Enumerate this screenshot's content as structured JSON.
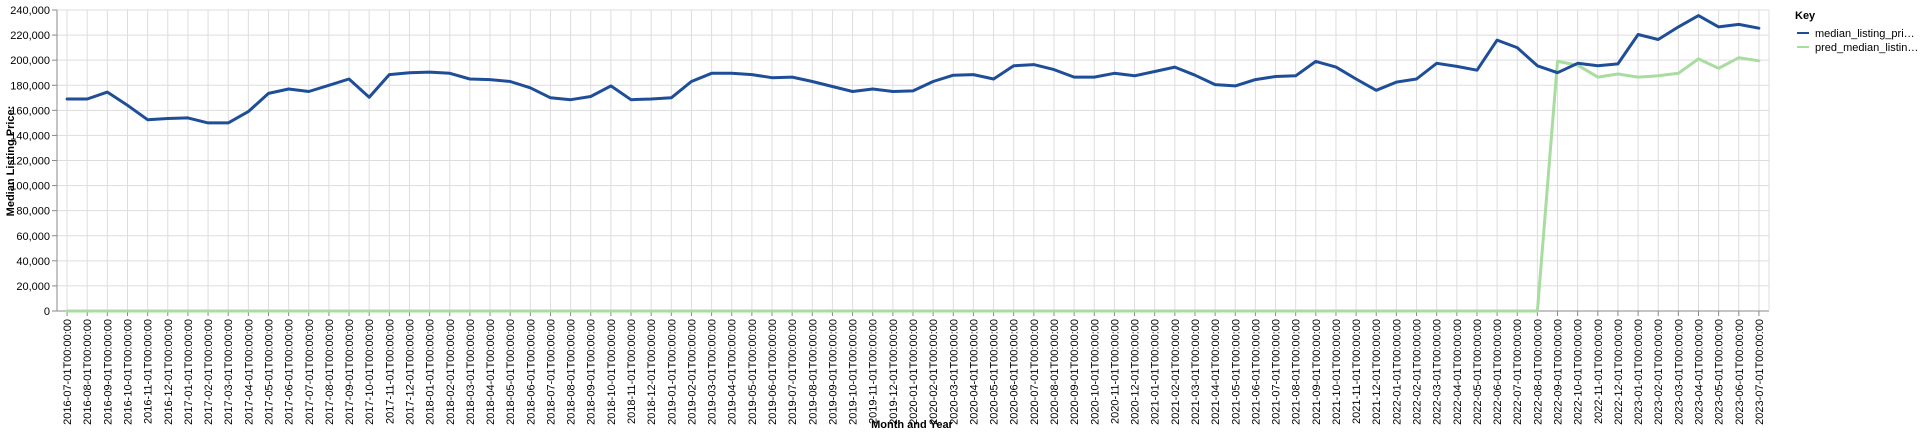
{
  "chart_data": {
    "type": "line",
    "title": "",
    "xlabel": "Month and Year",
    "ylabel": "Median Listing Price:",
    "ylim": [
      0,
      240000
    ],
    "y_ticks": [
      "0",
      "20,000",
      "40,000",
      "60,000",
      "80,000",
      "100,000",
      "120,000",
      "140,000",
      "160,000",
      "180,000",
      "200,000",
      "220,000",
      "240,000"
    ],
    "grid": true,
    "legend_position": "right",
    "legend_title": "Key",
    "legend_labels": [
      "median_listing_pri…",
      "pred_median_listin…"
    ],
    "x": [
      "2016-07-01T00:00:00",
      "2016-08-01T00:00:00",
      "2016-09-01T00:00:00",
      "2016-10-01T00:00:00",
      "2016-11-01T00:00:00",
      "2016-12-01T00:00:00",
      "2017-01-01T00:00:00",
      "2017-02-01T00:00:00",
      "2017-03-01T00:00:00",
      "2017-04-01T00:00:00",
      "2017-05-01T00:00:00",
      "2017-06-01T00:00:00",
      "2017-07-01T00:00:00",
      "2017-08-01T00:00:00",
      "2017-09-01T00:00:00",
      "2017-10-01T00:00:00",
      "2017-11-01T00:00:00",
      "2017-12-01T00:00:00",
      "2018-01-01T00:00:00",
      "2018-02-01T00:00:00",
      "2018-03-01T00:00:00",
      "2018-04-01T00:00:00",
      "2018-05-01T00:00:00",
      "2018-06-01T00:00:00",
      "2018-07-01T00:00:00",
      "2018-08-01T00:00:00",
      "2018-09-01T00:00:00",
      "2018-10-01T00:00:00",
      "2018-11-01T00:00:00",
      "2018-12-01T00:00:00",
      "2019-01-01T00:00:00",
      "2019-02-01T00:00:00",
      "2019-03-01T00:00:00",
      "2019-04-01T00:00:00",
      "2019-05-01T00:00:00",
      "2019-06-01T00:00:00",
      "2019-07-01T00:00:00",
      "2019-08-01T00:00:00",
      "2019-09-01T00:00:00",
      "2019-10-01T00:00:00",
      "2019-11-01T00:00:00",
      "2019-12-01T00:00:00",
      "2020-01-01T00:00:00",
      "2020-02-01T00:00:00",
      "2020-03-01T00:00:00",
      "2020-04-01T00:00:00",
      "2020-05-01T00:00:00",
      "2020-06-01T00:00:00",
      "2020-07-01T00:00:00",
      "2020-08-01T00:00:00",
      "2020-09-01T00:00:00",
      "2020-10-01T00:00:00",
      "2020-11-01T00:00:00",
      "2020-12-01T00:00:00",
      "2021-01-01T00:00:00",
      "2021-02-01T00:00:00",
      "2021-03-01T00:00:00",
      "2021-04-01T00:00:00",
      "2021-05-01T00:00:00",
      "2021-06-01T00:00:00",
      "2021-07-01T00:00:00",
      "2021-08-01T00:00:00",
      "2021-09-01T00:00:00",
      "2021-10-01T00:00:00",
      "2021-11-01T00:00:00",
      "2021-12-01T00:00:00",
      "2022-01-01T00:00:00",
      "2022-02-01T00:00:00",
      "2022-03-01T00:00:00",
      "2022-04-01T00:00:00",
      "2022-05-01T00:00:00",
      "2022-06-01T00:00:00",
      "2022-07-01T00:00:00",
      "2022-08-01T00:00:00",
      "2022-09-01T00:00:00",
      "2022-10-01T00:00:00",
      "2022-11-01T00:00:00",
      "2022-12-01T00:00:00",
      "2023-01-01T00:00:00",
      "2023-02-01T00:00:00",
      "2023-03-01T00:00:00",
      "2023-04-01T00:00:00",
      "2023-05-01T00:00:00",
      "2023-06-01T00:00:00",
      "2023-07-01T00:00:00"
    ],
    "series": [
      {
        "name": "median_listing_pri…",
        "color": "#1f4e99",
        "values": [
          169000,
          169000,
          174500,
          164000,
          152500,
          153500,
          154000,
          150000,
          150000,
          159000,
          173500,
          177000,
          175000,
          180000,
          185000,
          170500,
          188500,
          190000,
          190500,
          189500,
          185000,
          184500,
          183000,
          178000,
          170000,
          168500,
          171000,
          179500,
          168500,
          169000,
          170000,
          183000,
          189500,
          189500,
          188500,
          186000,
          186500,
          183000,
          179000,
          175000,
          177000,
          175000,
          175500,
          183000,
          188000,
          188500,
          185000,
          195500,
          196500,
          192500,
          186500,
          186500,
          189500,
          187500,
          191000,
          194500,
          188000,
          180500,
          179500,
          184500,
          187000,
          187500,
          199000,
          194500,
          185000,
          176000,
          182500,
          185000,
          197500,
          195000,
          192000,
          216000,
          210000,
          195500,
          190000,
          197500,
          195500,
          197000,
          220500,
          216500,
          226500,
          235500,
          226500,
          228500,
          225500
        ]
      },
      {
        "name": "pred_median_listin…",
        "color": "#a8dca0",
        "values": [
          0,
          0,
          0,
          0,
          0,
          0,
          0,
          0,
          0,
          0,
          0,
          0,
          0,
          0,
          0,
          0,
          0,
          0,
          0,
          0,
          0,
          0,
          0,
          0,
          0,
          0,
          0,
          0,
          0,
          0,
          0,
          0,
          0,
          0,
          0,
          0,
          0,
          0,
          0,
          0,
          0,
          0,
          0,
          0,
          0,
          0,
          0,
          0,
          0,
          0,
          0,
          0,
          0,
          0,
          0,
          0,
          0,
          0,
          0,
          0,
          0,
          0,
          0,
          0,
          0,
          0,
          0,
          0,
          0,
          0,
          0,
          0,
          0,
          0,
          199000,
          196000,
          186500,
          189000,
          186500,
          187500,
          189500,
          201000,
          193500,
          202000,
          199500
        ]
      }
    ]
  }
}
